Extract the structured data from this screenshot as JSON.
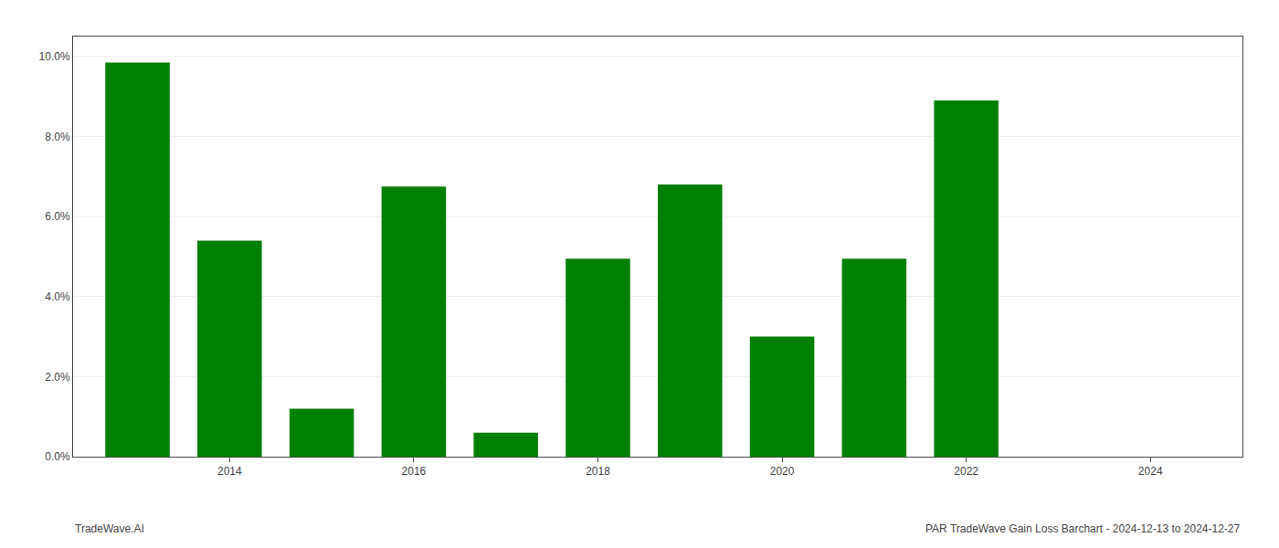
{
  "chart_data": {
    "type": "bar",
    "x": [
      2013,
      2014,
      2015,
      2016,
      2017,
      2018,
      2019,
      2020,
      2021,
      2022,
      2023
    ],
    "values": [
      0.0985,
      0.054,
      0.012,
      0.0675,
      0.006,
      0.0495,
      0.068,
      0.03,
      0.0495,
      0.089,
      0.0
    ],
    "color": "#008000",
    "xlim": [
      2012.3,
      2025.0
    ],
    "xticks": [
      2014,
      2016,
      2018,
      2020,
      2022,
      2024
    ],
    "ylim": [
      0,
      0.105
    ],
    "yticks": [
      {
        "value": 0.0,
        "label": "0.0%"
      },
      {
        "value": 0.02,
        "label": "2.0%"
      },
      {
        "value": 0.04,
        "label": "4.0%"
      },
      {
        "value": 0.06,
        "label": "6.0%"
      },
      {
        "value": 0.08,
        "label": "8.0%"
      },
      {
        "value": 0.1,
        "label": "10.0%"
      }
    ],
    "grid": "y",
    "annotations": [
      "TradeWave.AI",
      "PAR TradeWave Gain Loss Barchart - 2024-12-13 to 2024-12-27"
    ]
  }
}
